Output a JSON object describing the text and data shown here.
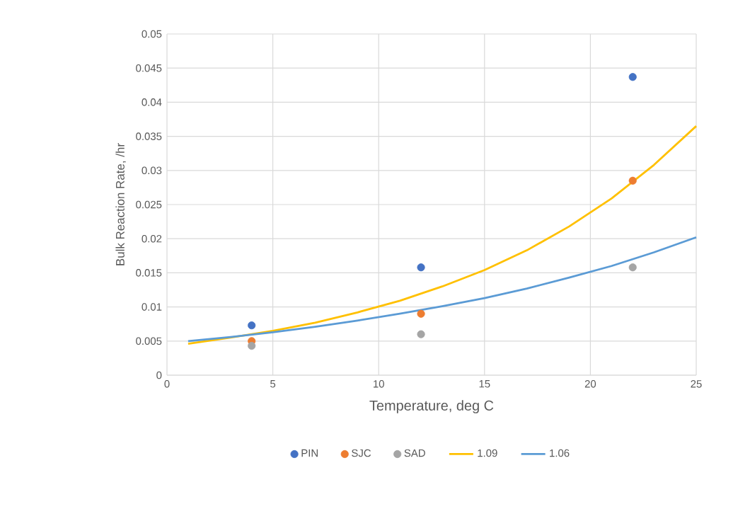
{
  "chart_data": {
    "type": "scatter",
    "xlabel": "Temperature, deg C",
    "ylabel": "Bulk Reaction Rate, /hr",
    "xlim": [
      0,
      25
    ],
    "xticks": [
      0,
      5,
      10,
      15,
      20,
      25
    ],
    "ylim": [
      0,
      0.05
    ],
    "yticks": [
      0,
      0.005,
      0.01,
      0.015,
      0.02,
      0.025,
      0.03,
      0.035,
      0.04,
      0.045,
      0.05
    ],
    "grid": true,
    "legend": "bottom",
    "series": [
      {
        "name": "PIN",
        "marker": "circle",
        "color": "#4472c4",
        "x": [
          4,
          12,
          22
        ],
        "values": [
          0.0073,
          0.0158,
          0.0437
        ]
      },
      {
        "name": "SJC",
        "marker": "circle",
        "color": "#ed7d31",
        "x": [
          4,
          12,
          22
        ],
        "values": [
          0.005,
          0.009,
          0.0285
        ]
      },
      {
        "name": "SAD",
        "marker": "circle",
        "color": "#a5a5a5",
        "x": [
          4,
          12,
          22
        ],
        "values": [
          0.0043,
          0.006,
          0.0158
        ]
      },
      {
        "name": "1.09",
        "type": "line",
        "marker": "none",
        "color": "#ffc000",
        "x": [
          1,
          3,
          5,
          7,
          9,
          11,
          13,
          15,
          17,
          19,
          21,
          23,
          25
        ],
        "values": [
          0.0046,
          0.0055,
          0.0065,
          0.0077,
          0.0092,
          0.0109,
          0.013,
          0.0154,
          0.0183,
          0.0218,
          0.0259,
          0.0308,
          0.0365
        ]
      },
      {
        "name": "1.06",
        "type": "line",
        "marker": "none",
        "color": "#5b9bd5",
        "x": [
          1,
          3,
          5,
          7,
          9,
          11,
          13,
          15,
          17,
          19,
          21,
          23,
          25
        ],
        "values": [
          0.005,
          0.0056,
          0.0063,
          0.0071,
          0.008,
          0.009,
          0.0101,
          0.0113,
          0.0127,
          0.0143,
          0.016,
          0.018,
          0.0202
        ]
      }
    ]
  }
}
